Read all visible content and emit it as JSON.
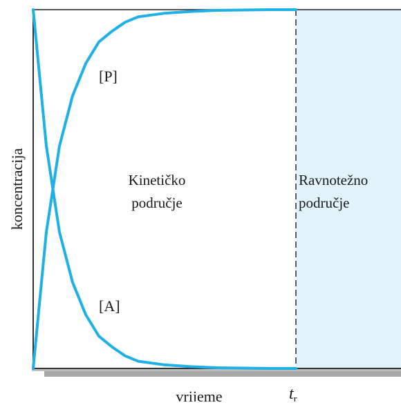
{
  "chart_data": {
    "type": "line",
    "title": "",
    "xlabel": "vrijeme",
    "ylabel": "koncentracija",
    "xlim": [
      0,
      1.4
    ],
    "ylim": [
      0,
      1
    ],
    "grid": false,
    "legend": "none",
    "x_ticks": [
      {
        "value": 1,
        "label": "t",
        "subscript": "r"
      }
    ],
    "series": [
      {
        "name": "[P]",
        "color": "#1fb0e6",
        "x": [
          0,
          0.05,
          0.1,
          0.15,
          0.2,
          0.25,
          0.3,
          0.35,
          0.4,
          0.5,
          0.6,
          0.7,
          0.8,
          0.9,
          1.0
        ],
        "y": [
          0,
          0.38,
          0.62,
          0.76,
          0.85,
          0.91,
          0.94,
          0.965,
          0.98,
          0.99,
          0.995,
          0.998,
          0.999,
          1.0,
          1.0
        ]
      },
      {
        "name": "[A]",
        "color": "#1fb0e6",
        "x": [
          0,
          0.05,
          0.1,
          0.15,
          0.2,
          0.25,
          0.3,
          0.35,
          0.4,
          0.5,
          0.6,
          0.7,
          0.8,
          0.9,
          1.0
        ],
        "y": [
          1,
          0.62,
          0.38,
          0.24,
          0.15,
          0.09,
          0.06,
          0.035,
          0.02,
          0.01,
          0.005,
          0.002,
          0.001,
          0.0,
          0.0
        ]
      }
    ],
    "regions": [
      {
        "name": "kinetic",
        "label_lines": [
          "Kinetičko",
          "područje"
        ],
        "x_range": [
          0,
          1
        ],
        "color": "#ffffff"
      },
      {
        "name": "equilibrium",
        "label_lines": [
          "Ravnotežno",
          "područje"
        ],
        "x_range": [
          1,
          1.4
        ],
        "color": "#e2f3fc"
      }
    ],
    "divider": {
      "x": 1,
      "style": "dashed"
    },
    "series_labels": [
      {
        "text": "[P]",
        "x": 0.25,
        "y": 0.8
      },
      {
        "text": "[A]",
        "x": 0.25,
        "y": 0.16
      }
    ]
  }
}
